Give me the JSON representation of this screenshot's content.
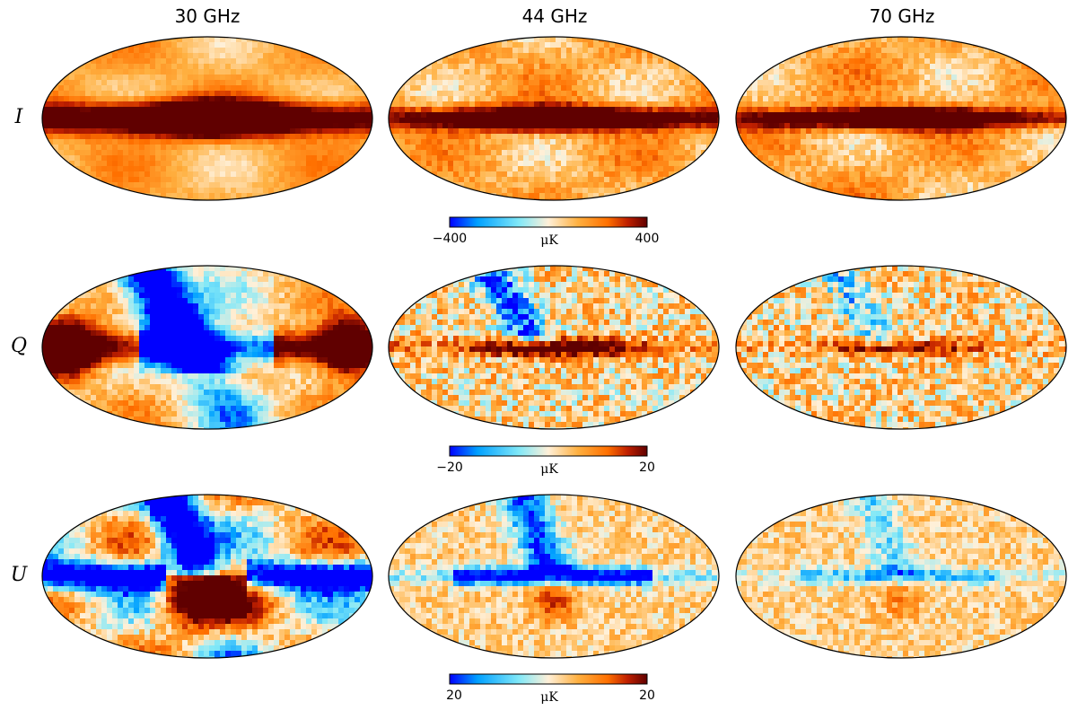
{
  "columns": [
    "30 GHz",
    "44 GHz",
    "70 GHz"
  ],
  "rows": [
    {
      "label": "I",
      "colorbar": {
        "min_label": "−400",
        "max_label": "400",
        "unit_label": "μK"
      },
      "maps": [
        {
          "band_strength": 1.0,
          "band_width": 1.0,
          "feature": "none"
        },
        {
          "band_strength": 0.85,
          "band_width": 0.55,
          "feature": "none"
        },
        {
          "band_strength": 0.75,
          "band_width": 0.45,
          "feature": "none"
        }
      ]
    },
    {
      "label": "Q",
      "colorbar": {
        "min_label": "−20",
        "max_label": "20",
        "unit_label": "μK"
      },
      "maps": [
        {
          "band_strength": 1.0,
          "band_width": 1.0,
          "feature": "q-strong"
        },
        {
          "band_strength": 0.6,
          "band_width": 0.4,
          "feature": "q-mid"
        },
        {
          "band_strength": 0.45,
          "band_width": 0.3,
          "feature": "q-weak"
        }
      ]
    },
    {
      "label": "U",
      "colorbar": {
        "min_label": "20",
        "max_label": "20",
        "unit_label": "μK"
      },
      "maps": [
        {
          "band_strength": 1.0,
          "band_width": 1.0,
          "feature": "u-strong"
        },
        {
          "band_strength": 0.5,
          "band_width": 0.4,
          "feature": "u-mid"
        },
        {
          "band_strength": 0.3,
          "band_width": 0.3,
          "feature": "u-weak"
        }
      ]
    }
  ],
  "colormap": [
    "#0000ff",
    "#00a0ff",
    "#80e8f8",
    "#fff0d8",
    "#ffb040",
    "#ff7000",
    "#c02000",
    "#600000"
  ]
}
